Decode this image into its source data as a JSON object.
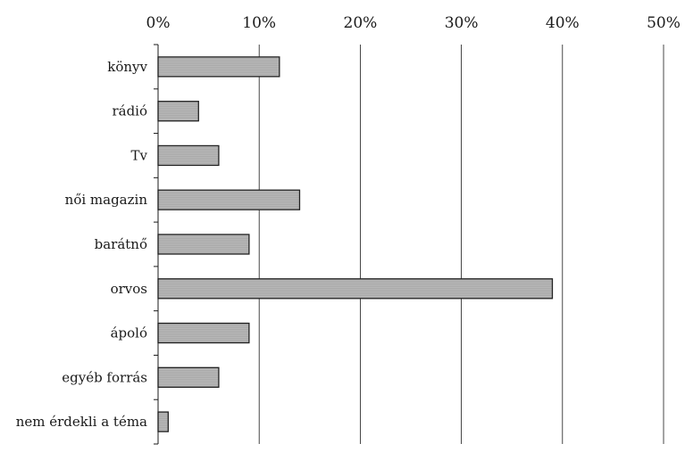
{
  "chart_data": {
    "type": "bar",
    "orientation": "horizontal",
    "categories": [
      "könyv",
      "rádió",
      "Tv",
      "női magazin",
      "barátnő",
      "orvos",
      "ápoló",
      "egyéb forrás",
      "nem érdekli a téma"
    ],
    "values": [
      12,
      4,
      6,
      14,
      9,
      39,
      9,
      6,
      1
    ],
    "x_ticks": [
      "0%",
      "10%",
      "20%",
      "30%",
      "40%",
      "50%"
    ],
    "xlim": [
      0,
      50
    ],
    "x_axis_position": "top",
    "grid": true,
    "bar_color": "#a9a9a9"
  }
}
